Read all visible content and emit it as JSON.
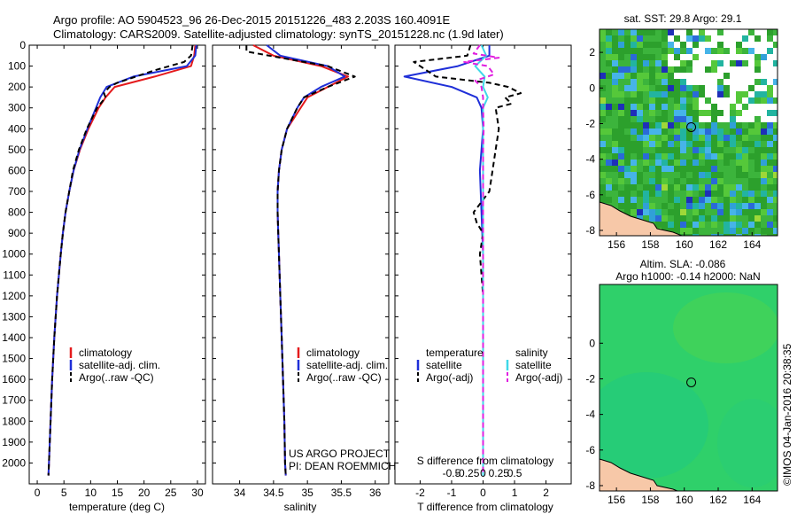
{
  "header": {
    "line1": "Argo profile: AO 5904523_96 26-Dec-2015 20151226_483 2.203S 160.4091E",
    "line2": "Climatology: CARS2009. Satellite-adjusted climatology: synTS_20151228.nc (1.9d later)"
  },
  "credit": "©IMOS 04-Jan-2016 20:38:35",
  "colors": {
    "climatology": "#e41a1c",
    "satellite": "#1f2fd8",
    "argo": "#000000",
    "salinity_satellite": "#3fd8e8",
    "salinity_argo": "#e020e0"
  },
  "chart_data": [
    {
      "type": "line",
      "name": "temperature-panel",
      "xlabel": "temperature (deg C)",
      "ylabel": "",
      "xlim": [
        -1.5,
        31.5
      ],
      "ylim": [
        2100,
        0
      ],
      "xticks": [
        0,
        5,
        10,
        15,
        20,
        25,
        30
      ],
      "yticks": [
        0,
        100,
        200,
        300,
        400,
        500,
        600,
        700,
        800,
        900,
        1000,
        1100,
        1200,
        1300,
        1400,
        1500,
        1600,
        1700,
        1800,
        1900,
        2000
      ],
      "legend": [
        "climatology",
        "satellite-adj. clim.",
        "Argo(..raw -QC)"
      ],
      "legend_position": "bottom-left",
      "series": [
        {
          "key": "clim",
          "depth": [
            0,
            50,
            100,
            150,
            200,
            250,
            300,
            400,
            500,
            600,
            700,
            800,
            900,
            1000,
            1200,
            1400,
            1600,
            1800,
            2000,
            2060
          ],
          "values": [
            29.6,
            29.4,
            28.8,
            22.0,
            14.5,
            12.8,
            11.5,
            9.6,
            8.0,
            6.8,
            6.0,
            5.3,
            4.8,
            4.4,
            3.7,
            3.2,
            2.8,
            2.5,
            2.2,
            2.1
          ]
        },
        {
          "key": "sat",
          "depth": [
            0,
            50,
            100,
            150,
            200,
            250,
            300,
            400,
            500,
            600,
            700,
            800,
            900,
            1000,
            1200,
            1400,
            1600,
            1800,
            2000,
            2060
          ],
          "values": [
            29.8,
            29.6,
            28.0,
            18.0,
            13.0,
            11.8,
            11.0,
            9.4,
            7.9,
            6.8,
            6.0,
            5.3,
            4.8,
            4.4,
            3.7,
            3.2,
            2.8,
            2.5,
            2.2,
            2.1
          ]
        },
        {
          "key": "argo",
          "depth": [
            0,
            50,
            80,
            120,
            150,
            180,
            200,
            230,
            250,
            300,
            400,
            500,
            600,
            700,
            800,
            900,
            1000,
            1200,
            1400,
            1600,
            1800,
            2000,
            2060
          ],
          "values": [
            29.1,
            28.8,
            27.5,
            22.0,
            18.5,
            15.0,
            13.5,
            12.5,
            12.8,
            11.2,
            9.3,
            7.8,
            6.7,
            6.0,
            5.3,
            4.8,
            4.4,
            3.7,
            3.2,
            2.8,
            2.5,
            2.2,
            2.1
          ]
        }
      ]
    },
    {
      "type": "line",
      "name": "salinity-panel",
      "xlabel": "salinity",
      "xlim": [
        33.6,
        36.2
      ],
      "ylim": [
        2100,
        0
      ],
      "xticks": [
        34,
        34.5,
        35,
        35.5,
        36
      ],
      "xtick_labels": [
        "34",
        "34.5",
        "35",
        "35.5",
        "36"
      ],
      "legend": [
        "climatology",
        "satellite-adj. clim.",
        "Argo(..raw -QC)"
      ],
      "legend_position": "bottom-right",
      "annotation": [
        "US ARGO PROJECT",
        "PI: DEAN ROEMMICH"
      ],
      "series": [
        {
          "key": "clim",
          "depth": [
            0,
            50,
            100,
            150,
            200,
            250,
            300,
            400,
            500,
            600,
            700,
            800,
            900,
            1000,
            1200,
            1400,
            1600,
            1800,
            2000,
            2060
          ],
          "values": [
            34.2,
            34.5,
            35.2,
            35.6,
            35.3,
            35.0,
            34.9,
            34.7,
            34.62,
            34.58,
            34.56,
            34.56,
            34.57,
            34.58,
            34.6,
            34.62,
            34.64,
            34.66,
            34.67,
            34.68
          ]
        },
        {
          "key": "sat",
          "depth": [
            0,
            50,
            100,
            150,
            200,
            250,
            300,
            400,
            500,
            600,
            700,
            800,
            900,
            1000,
            1200,
            1400,
            1600,
            1800,
            2000,
            2060
          ],
          "values": [
            34.4,
            34.6,
            35.3,
            35.55,
            35.2,
            34.95,
            34.85,
            34.7,
            34.62,
            34.58,
            34.56,
            34.56,
            34.57,
            34.58,
            34.6,
            34.62,
            34.64,
            34.66,
            34.67,
            34.68
          ]
        },
        {
          "key": "argo",
          "depth": [
            0,
            30,
            60,
            100,
            150,
            200,
            250,
            300,
            400,
            500,
            600,
            700,
            800,
            900,
            1000,
            1200,
            1400,
            1600,
            1800,
            2000,
            2060
          ],
          "values": [
            34.1,
            34.1,
            34.6,
            35.3,
            35.7,
            35.3,
            34.95,
            34.85,
            34.7,
            34.62,
            34.58,
            34.56,
            34.56,
            34.57,
            34.58,
            34.6,
            34.62,
            34.64,
            34.66,
            34.67,
            34.68
          ]
        }
      ]
    },
    {
      "type": "line",
      "name": "difference-panel",
      "xlabel": "T difference from climatology",
      "xlabel_top": "S difference from climatology",
      "xlim": [
        -2.8,
        2.8
      ],
      "ylim": [
        2100,
        0
      ],
      "xticks": [
        -2,
        -1,
        0,
        1,
        2
      ],
      "xticks_salinity": [
        "-0.5",
        "-0.25",
        "0",
        "0.25",
        "0.5"
      ],
      "legend_temperature": {
        "title": "temperature",
        "items": [
          "satellite",
          "Argo(-adj)"
        ]
      },
      "legend_salinity": {
        "title": "salinity",
        "items": [
          "satellite",
          "Argo(-adj)"
        ]
      },
      "series": [
        {
          "key": "t_sat",
          "depth": [
            0,
            50,
            100,
            150,
            200,
            250,
            300,
            400,
            600,
            800,
            1000,
            1500,
            2060
          ],
          "values": [
            0.2,
            0.2,
            -0.8,
            -2.5,
            -1.0,
            -0.2,
            -0.05,
            0.0,
            -0.1,
            -0.05,
            0.0,
            0.0,
            0.0
          ]
        },
        {
          "key": "t_argo",
          "depth": [
            0,
            50,
            80,
            100,
            150,
            180,
            200,
            230,
            250,
            280,
            300,
            400,
            500,
            600,
            700,
            800,
            850,
            900,
            1000,
            1200,
            1500,
            1800,
            2060
          ],
          "values": [
            -0.4,
            -0.5,
            -2.2,
            -2.0,
            -1.5,
            0.2,
            0.8,
            1.2,
            0.7,
            0.9,
            0.4,
            0.5,
            0.4,
            0.3,
            0.2,
            -0.3,
            -0.2,
            0.0,
            -0.1,
            0.0,
            0.0,
            0.0,
            0.0
          ]
        },
        {
          "key": "s_sat",
          "depth": [
            0,
            50,
            100,
            150,
            200,
            250,
            300,
            400,
            600,
            1000,
            2060
          ],
          "values": [
            -0.05,
            0.1,
            -0.25,
            0.05,
            0.0,
            0.15,
            0.0,
            0.0,
            0.0,
            0.0,
            0.0
          ]
        },
        {
          "key": "s_argo",
          "depth": [
            0,
            40,
            60,
            80,
            100,
            140,
            170,
            200,
            250,
            300,
            400,
            500,
            600,
            800,
            1000,
            1500,
            2060
          ],
          "values": [
            -0.1,
            -0.3,
            0.5,
            -0.6,
            0.15,
            0.35,
            -0.25,
            -0.05,
            0.0,
            0.0,
            0.02,
            0.0,
            0.0,
            0.0,
            0.0,
            0.0,
            0.0
          ]
        }
      ]
    },
    {
      "type": "heatmap",
      "name": "sst-map",
      "title": "sat. SST: 29.8 Argo: 29.1",
      "xlim": [
        155,
        165.5
      ],
      "ylim": [
        -8.3,
        3.3
      ],
      "xticks": [
        156,
        158,
        160,
        162,
        164
      ],
      "yticks": [
        2,
        0,
        -2,
        -4,
        -6,
        -8
      ],
      "marker": {
        "lon": 160.41,
        "lat": -2.2
      }
    },
    {
      "type": "heatmap",
      "name": "sla-map",
      "title": "Altim. SLA: -0.086",
      "subtitle": "Argo h1000: -0.14 h2000: NaN",
      "xlim": [
        155,
        165.5
      ],
      "ylim": [
        -8.3,
        3.3
      ],
      "xticks": [
        156,
        158,
        160,
        162,
        164
      ],
      "yticks": [
        0,
        -2,
        -4,
        -6,
        -8
      ],
      "marker": {
        "lon": 160.41,
        "lat": -2.2
      }
    }
  ]
}
